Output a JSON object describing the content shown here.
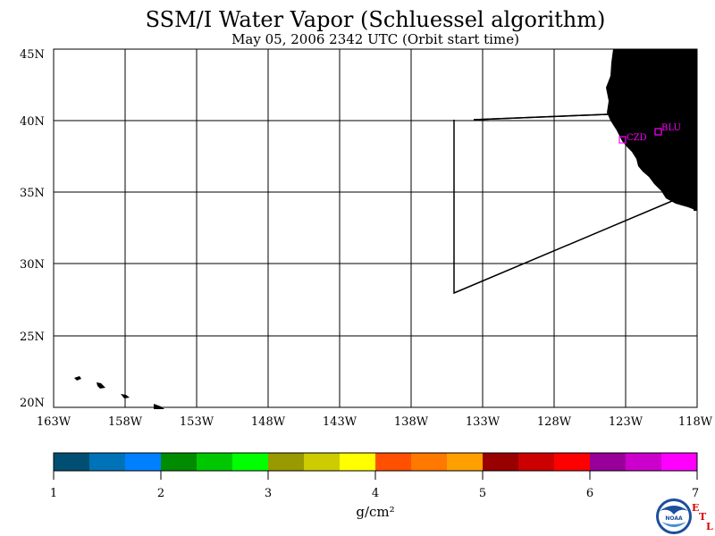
{
  "title": "SSM/I Water Vapor (Schluessel algorithm)",
  "subtitle": "May 05, 2006  2342 UTC  (Orbit start time)",
  "map": {
    "lat_labels": [
      "45N",
      "40N",
      "35N",
      "30N",
      "25N",
      "20N"
    ],
    "lon_labels": [
      "163W",
      "158W",
      "153W",
      "148W",
      "143W",
      "138W",
      "133W",
      "128W",
      "123W",
      "118W"
    ],
    "lat_range": [
      20,
      45
    ],
    "lon_range": [
      -163,
      -118
    ],
    "land_color": "#000000",
    "stations": [
      {
        "id": "CZD",
        "color": "#ff00ff"
      },
      {
        "id": "BLU",
        "color": "#ff00ff"
      }
    ]
  },
  "colorbar": {
    "colors": [
      "#004f73",
      "#0072b8",
      "#0080ff",
      "#008c00",
      "#00c800",
      "#00ff00",
      "#999900",
      "#cccc00",
      "#ffff00",
      "#ff5000",
      "#ff7800",
      "#ffa000",
      "#990000",
      "#cc0000",
      "#ff0000",
      "#990099",
      "#cc00cc",
      "#ff00ff"
    ],
    "ticks": [
      "1",
      "2",
      "3",
      "4",
      "5",
      "6",
      "7"
    ],
    "unit": "g/cm²"
  },
  "logo": {
    "text": "NOAA",
    "etl_e": "E",
    "etl_t": "T",
    "etl_l": "L",
    "etl_color": "#dd0000"
  }
}
